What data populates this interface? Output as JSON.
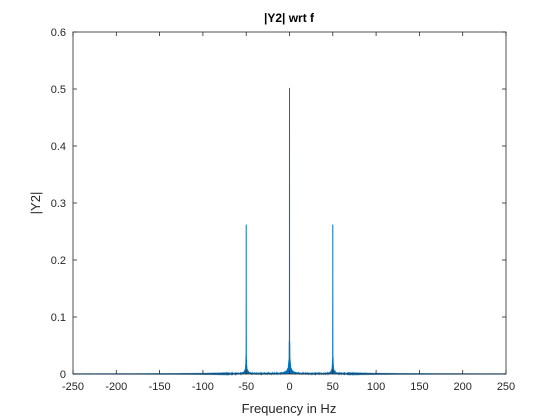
{
  "chart_data": {
    "type": "line",
    "title": "|Y2| wrt f",
    "xlabel": "Frequency in Hz",
    "ylabel": "|Y2|",
    "xlim": [
      -250,
      250
    ],
    "ylim": [
      0,
      0.6
    ],
    "xticks": [
      "-250",
      "-200",
      "-150",
      "-100",
      "-50",
      "0",
      "50",
      "100",
      "150",
      "200",
      "250"
    ],
    "yticks": [
      "0",
      "0.1",
      "0.2",
      "0.3",
      "0.4",
      "0.5",
      "0.6"
    ],
    "grid": false,
    "series_color": "#0072BD",
    "peaks": [
      {
        "x": -50,
        "y": 0.262
      },
      {
        "x": 0,
        "y": 0.502
      },
      {
        "x": 50,
        "y": 0.262
      }
    ]
  }
}
